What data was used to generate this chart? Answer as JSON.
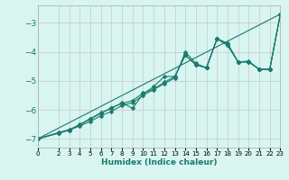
{
  "xlabel": "Humidex (Indice chaleur)",
  "bg_color": "#d8f5f0",
  "grid_color": "#c8c8c8",
  "line_color": "#1a7a6e",
  "xlim": [
    0,
    23
  ],
  "ylim": [
    -7.3,
    -2.4
  ],
  "yticks": [
    -7,
    -6,
    -5,
    -4,
    -3
  ],
  "xticks": [
    0,
    2,
    3,
    4,
    5,
    6,
    7,
    8,
    9,
    10,
    11,
    12,
    13,
    14,
    15,
    16,
    17,
    18,
    19,
    20,
    21,
    22,
    23
  ],
  "lines": [
    {
      "x": [
        0,
        23
      ],
      "y": [
        -7.0,
        -2.7
      ],
      "marker": null,
      "markersize": 0,
      "linewidth": 0.8
    },
    {
      "x": [
        0,
        2,
        3,
        4,
        5,
        6,
        7,
        8,
        9,
        10,
        11,
        12,
        13,
        14,
        15,
        16,
        17,
        18,
        19,
        20,
        21,
        22,
        23
      ],
      "y": [
        -7.0,
        -6.8,
        -6.7,
        -6.55,
        -6.4,
        -6.2,
        -6.05,
        -5.85,
        -5.75,
        -5.5,
        -5.3,
        -5.1,
        -4.9,
        -4.0,
        -4.4,
        -4.55,
        -3.55,
        -3.7,
        -4.35,
        -4.35,
        -4.6,
        -4.6,
        -2.7
      ],
      "marker": "D",
      "markersize": 2.5,
      "linewidth": 0.8
    },
    {
      "x": [
        0,
        2,
        3,
        4,
        5,
        6,
        7,
        8,
        9,
        10,
        11,
        12,
        13,
        14,
        15,
        16,
        17,
        18,
        19,
        20,
        21,
        22,
        23
      ],
      "y": [
        -7.0,
        -6.8,
        -6.7,
        -6.5,
        -6.3,
        -6.1,
        -5.95,
        -5.75,
        -5.95,
        -5.45,
        -5.2,
        -4.85,
        -4.85,
        -4.1,
        -4.45,
        -4.55,
        -3.55,
        -3.75,
        -4.35,
        -4.35,
        -4.6,
        -4.6,
        -2.7
      ],
      "marker": "D",
      "markersize": 2.5,
      "linewidth": 0.8
    },
    {
      "x": [
        0,
        2,
        3,
        4,
        5,
        6,
        7,
        8,
        9,
        10,
        11,
        12,
        13,
        14,
        15,
        16,
        17,
        18,
        19,
        20,
        21,
        22,
        23
      ],
      "y": [
        -7.0,
        -6.78,
        -6.68,
        -6.52,
        -6.32,
        -6.12,
        -5.92,
        -5.78,
        -5.68,
        -5.42,
        -5.28,
        -5.05,
        -4.85,
        -4.12,
        -4.45,
        -4.55,
        -3.55,
        -3.78,
        -4.35,
        -4.32,
        -4.6,
        -4.6,
        -2.7
      ],
      "marker": "D",
      "markersize": 2.5,
      "linewidth": 0.8
    }
  ]
}
